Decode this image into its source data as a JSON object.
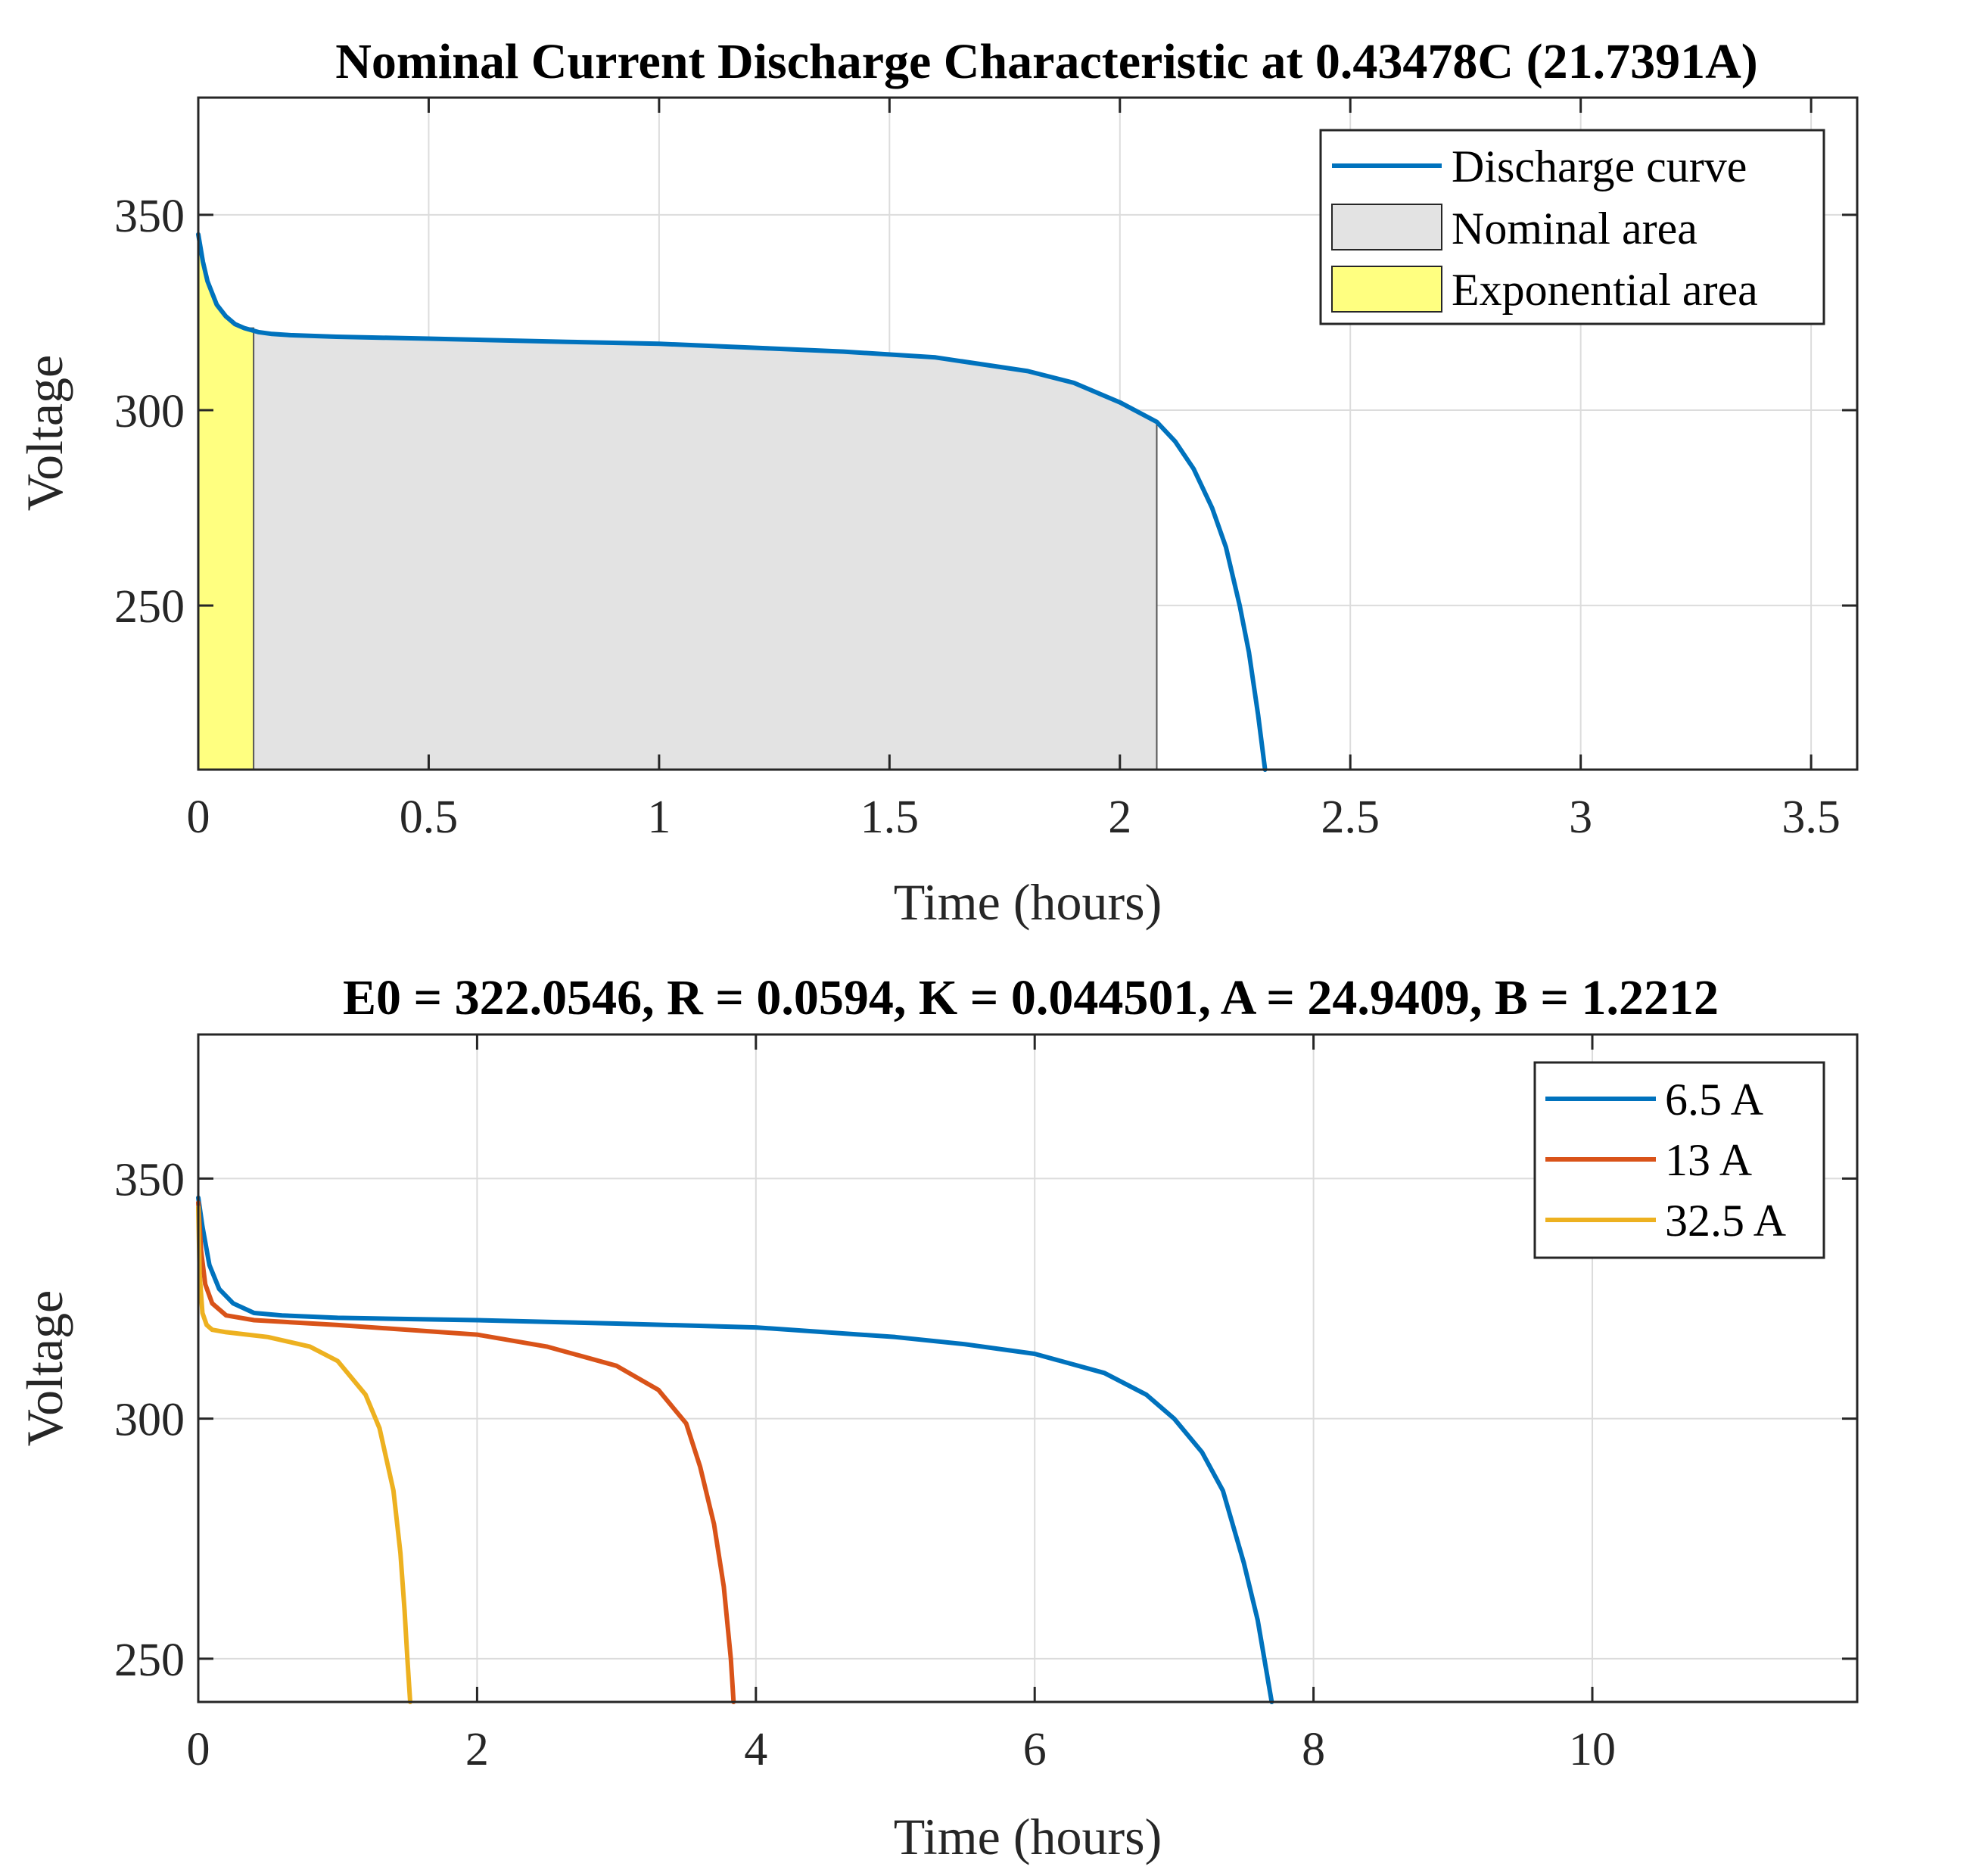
{
  "chart_data": [
    {
      "type": "line",
      "title": "Nominal Current Discharge Characteristic at 0.43478C (21.7391A)",
      "xlabel": "Time (hours)",
      "ylabel": "Voltage",
      "xlim": [
        0,
        3.6
      ],
      "ylim": [
        208,
        380
      ],
      "xticks": [
        0,
        0.5,
        1,
        1.5,
        2,
        2.5,
        3,
        3.5
      ],
      "xtick_labels": [
        "0",
        "0.5",
        "1",
        "1.5",
        "2",
        "2.5",
        "3",
        "3.5"
      ],
      "yticks": [
        250,
        300,
        350
      ],
      "ytick_labels": [
        "250",
        "300",
        "350"
      ],
      "grid": true,
      "legend_position": "top-right",
      "series": [
        {
          "name": "Discharge curve",
          "color": "#0072BD",
          "x": [
            0,
            0.01,
            0.02,
            0.04,
            0.06,
            0.08,
            0.1,
            0.13,
            0.16,
            0.2,
            0.3,
            0.5,
            0.8,
            1.0,
            1.2,
            1.4,
            1.6,
            1.8,
            1.9,
            2.0,
            2.08,
            2.12,
            2.16,
            2.2,
            2.23,
            2.26,
            2.28,
            2.3,
            2.315
          ],
          "y": [
            345,
            338,
            333,
            327,
            324,
            322,
            321,
            320,
            319.5,
            319.2,
            318.8,
            318.3,
            317.5,
            317,
            316,
            315,
            313.5,
            310,
            307,
            302,
            297,
            292,
            285,
            275,
            265,
            250,
            238,
            222,
            208
          ]
        },
        {
          "name": "Nominal area",
          "color": "#E3E3E3",
          "area": true,
          "x": [
            0,
            0.16,
            0.2,
            0.3,
            0.5,
            0.8,
            1.0,
            1.2,
            1.4,
            1.6,
            1.8,
            1.9,
            2.0,
            2.08
          ],
          "y": [
            321,
            319.5,
            319.2,
            318.8,
            318.3,
            317.5,
            317,
            316,
            315,
            313.5,
            310,
            307,
            302,
            297
          ]
        },
        {
          "name": "Exponential area",
          "color": "#FFFF80",
          "area": true,
          "x": [
            0,
            0.01,
            0.02,
            0.04,
            0.06,
            0.08,
            0.1,
            0.12
          ],
          "y": [
            345,
            338,
            333,
            327,
            324,
            322,
            321,
            321
          ]
        }
      ]
    },
    {
      "type": "line",
      "title": "E0 = 322.0546, R = 0.0594, K = 0.044501, A = 24.9409, B = 1.2212",
      "xlabel": "Time (hours)",
      "ylabel": "Voltage",
      "xlim": [
        0,
        11.9
      ],
      "ylim": [
        241,
        380
      ],
      "xticks": [
        0,
        2,
        4,
        6,
        8,
        10
      ],
      "xtick_labels": [
        "0",
        "2",
        "4",
        "6",
        "8",
        "10"
      ],
      "yticks": [
        250,
        300,
        350
      ],
      "ytick_labels": [
        "250",
        "300",
        "350"
      ],
      "grid": true,
      "legend_position": "top-right",
      "series": [
        {
          "name": "6.5 A",
          "color": "#0072BD",
          "x": [
            0,
            0.03,
            0.08,
            0.15,
            0.25,
            0.4,
            0.6,
            1,
            2,
            3,
            4,
            5,
            5.5,
            6,
            6.5,
            6.8,
            7.0,
            7.2,
            7.35,
            7.5,
            7.6,
            7.7
          ],
          "y": [
            346,
            340,
            332,
            327,
            324,
            322,
            321.5,
            321,
            320.5,
            319.8,
            319,
            317,
            315.5,
            313.5,
            309.5,
            305,
            300,
            293,
            285,
            270,
            258,
            241
          ]
        },
        {
          "name": "13 A",
          "color": "#D95319",
          "x": [
            0,
            0.02,
            0.05,
            0.1,
            0.2,
            0.4,
            1,
            2,
            2.5,
            3,
            3.3,
            3.5,
            3.6,
            3.7,
            3.77,
            3.82,
            3.84
          ],
          "y": [
            345,
            335,
            328,
            324,
            321.5,
            320.5,
            319.5,
            317.5,
            315,
            311,
            306,
            299,
            290,
            278,
            265,
            250,
            241
          ]
        },
        {
          "name": "32.5 A",
          "color": "#EDB120",
          "x": [
            0,
            0.01,
            0.03,
            0.06,
            0.1,
            0.2,
            0.5,
            0.8,
            1.0,
            1.2,
            1.3,
            1.4,
            1.45,
            1.48,
            1.5,
            1.52
          ],
          "y": [
            344,
            330,
            322,
            319.5,
            318.5,
            318,
            317,
            315,
            312,
            305,
            298,
            285,
            272,
            260,
            250,
            241
          ]
        }
      ]
    }
  ]
}
